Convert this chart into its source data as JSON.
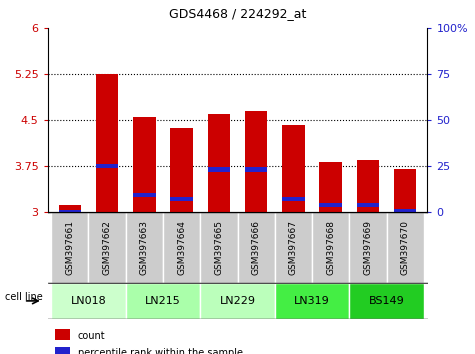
{
  "title": "GDS4468 / 224292_at",
  "samples": [
    "GSM397661",
    "GSM397662",
    "GSM397663",
    "GSM397664",
    "GSM397665",
    "GSM397666",
    "GSM397667",
    "GSM397668",
    "GSM397669",
    "GSM397670"
  ],
  "cell_lines": [
    "LN018",
    "LN215",
    "LN229",
    "LN319",
    "BS149"
  ],
  "cell_line_spans": [
    2,
    2,
    2,
    2,
    2
  ],
  "count_values": [
    3.12,
    5.25,
    4.56,
    4.38,
    4.6,
    4.65,
    4.42,
    3.82,
    3.85,
    3.7
  ],
  "percentile_values": [
    3.01,
    3.76,
    3.28,
    3.22,
    3.7,
    3.7,
    3.22,
    3.12,
    3.12,
    3.02
  ],
  "ymin": 3.0,
  "ymax": 6.0,
  "yticks": [
    3.0,
    3.75,
    4.5,
    5.25,
    6.0
  ],
  "ytick_labels": [
    "3",
    "3.75",
    "4.5",
    "5.25",
    "6"
  ],
  "right_yticks": [
    0,
    25,
    50,
    75,
    100
  ],
  "right_ytick_labels": [
    "0",
    "25",
    "50",
    "75",
    "100%"
  ],
  "bar_color": "#CC0000",
  "percentile_color": "#2222CC",
  "left_tick_color": "#CC0000",
  "right_tick_color": "#2222CC",
  "cell_line_colors": [
    "#CCFFCC",
    "#AAFFAA",
    "#BBFFBB",
    "#44EE44",
    "#22CC22"
  ],
  "bar_width": 0.6,
  "legend_count": "count",
  "legend_percentile": "percentile rank within the sample",
  "xlabel": "cell line",
  "sample_box_color": "#CCCCCC",
  "grid_color": "#000000"
}
